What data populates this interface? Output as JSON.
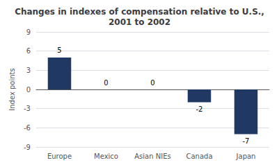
{
  "chart_data": {
    "type": "bar",
    "title": "Changes in indexes of compensation relative to U.S.,\n2001 to 2002",
    "categories": [
      "Europe",
      "Mexico",
      "Asian NIEs",
      "Canada",
      "Japan"
    ],
    "values": [
      5,
      0,
      0,
      -2,
      -7
    ],
    "color": "#1F3864",
    "ylabel": "Index points",
    "ylim": [
      -9,
      9
    ],
    "yticks": [
      -9,
      -6,
      -3,
      0,
      3,
      6,
      9
    ],
    "grid": true,
    "data_labels": true
  }
}
